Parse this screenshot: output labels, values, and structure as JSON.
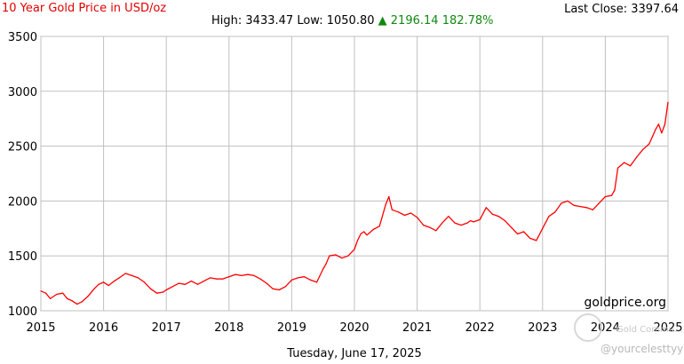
{
  "header": {
    "title": "10 Year Gold Price in USD/oz",
    "last_close_label": "Last Close:",
    "last_close_value": "3397.64",
    "high_label": "High:",
    "high_value": "3433.47",
    "low_label": "Low:",
    "low_value": "1050.80",
    "change_arrow": "▲",
    "change_value": "2196.14",
    "change_pct": "182.78%"
  },
  "footer": {
    "date": "Tuesday, June 17, 2025",
    "brand": "goldprice.org",
    "watermark_line1": "Gold Commu...",
    "watermark_handle": "@yourcelesttyy"
  },
  "colors": {
    "line": "#ff0000",
    "grid": "#c0c0c0",
    "title": "#e00000",
    "up": "#118811"
  },
  "chart_data": {
    "type": "line",
    "title": "10 Year Gold Price in USD/oz",
    "xlabel": "",
    "ylabel": "",
    "xlim": [
      2015,
      2025
    ],
    "ylim": [
      1000,
      3500
    ],
    "x_ticks": [
      2015,
      2016,
      2017,
      2018,
      2019,
      2020,
      2021,
      2022,
      2023,
      2024,
      2025
    ],
    "y_ticks": [
      1000,
      1500,
      2000,
      2500,
      3000,
      3500
    ],
    "grid": true,
    "series": [
      {
        "x": [
          2015.0,
          2015.08,
          2015.15,
          2015.25,
          2015.35,
          2015.42,
          2015.5,
          2015.58,
          2015.65,
          2015.75,
          2015.85,
          2015.92,
          2016.0,
          2016.08,
          2016.17,
          2016.25,
          2016.35,
          2016.45,
          2016.55,
          2016.65,
          2016.75,
          2016.85,
          2016.95,
          2017.0,
          2017.1,
          2017.2,
          2017.3,
          2017.4,
          2017.5,
          2017.6,
          2017.7,
          2017.8,
          2017.9,
          2018.0,
          2018.1,
          2018.2,
          2018.3,
          2018.4,
          2018.5,
          2018.6,
          2018.7,
          2018.8,
          2018.9,
          2019.0,
          2019.1,
          2019.2,
          2019.3,
          2019.4,
          2019.5,
          2019.55,
          2019.6,
          2019.7,
          2019.8,
          2019.9,
          2020.0,
          2020.05,
          2020.1,
          2020.15,
          2020.2,
          2020.3,
          2020.4,
          2020.5,
          2020.55,
          2020.6,
          2020.7,
          2020.8,
          2020.9,
          2021.0,
          2021.1,
          2021.2,
          2021.3,
          2021.4,
          2021.5,
          2021.6,
          2021.7,
          2021.8,
          2021.85,
          2021.9,
          2022.0,
          2022.1,
          2022.2,
          2022.3,
          2022.4,
          2022.5,
          2022.6,
          2022.7,
          2022.8,
          2022.9,
          2023.0,
          2023.1,
          2023.2,
          2023.3,
          2023.4,
          2023.5,
          2023.6,
          2023.7,
          2023.8,
          2023.9,
          2024.0,
          2024.1,
          2024.15,
          2024.2,
          2024.3,
          2024.4,
          2024.5,
          2024.6,
          2024.7,
          2024.8,
          2024.85,
          2024.9,
          2024.95,
          2025.0
        ],
        "values": [
          1180,
          1160,
          1110,
          1150,
          1160,
          1110,
          1090,
          1060,
          1080,
          1130,
          1200,
          1240,
          1260,
          1230,
          1270,
          1300,
          1340,
          1320,
          1300,
          1260,
          1200,
          1160,
          1170,
          1190,
          1220,
          1250,
          1240,
          1270,
          1240,
          1270,
          1300,
          1290,
          1290,
          1310,
          1330,
          1320,
          1330,
          1320,
          1290,
          1250,
          1200,
          1190,
          1220,
          1280,
          1300,
          1310,
          1280,
          1260,
          1380,
          1430,
          1500,
          1510,
          1480,
          1500,
          1560,
          1640,
          1700,
          1720,
          1690,
          1740,
          1770,
          1970,
          2040,
          1920,
          1900,
          1870,
          1890,
          1850,
          1780,
          1760,
          1730,
          1800,
          1860,
          1800,
          1780,
          1800,
          1820,
          1810,
          1830,
          1940,
          1880,
          1860,
          1820,
          1760,
          1700,
          1720,
          1660,
          1640,
          1750,
          1860,
          1900,
          1980,
          2000,
          1960,
          1950,
          1940,
          1920,
          1980,
          2040,
          2050,
          2100,
          2300,
          2350,
          2320,
          2400,
          2470,
          2520,
          2650,
          2700,
          2620,
          2700,
          2900
        ]
      }
    ]
  }
}
